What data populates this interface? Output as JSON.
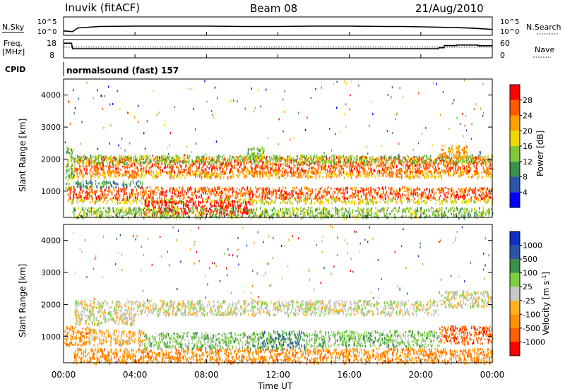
{
  "header": {
    "station": "Inuvik (fitACF)",
    "beam": "Beam 08",
    "date": "21/Aug/2010"
  },
  "left_labels": {
    "nsky": "N.Sky",
    "freq": "Freq.",
    "mhz": "[MHz]",
    "cpid": "CPID"
  },
  "right_labels": {
    "nsearch": "N.Search",
    "nave": "Nave"
  },
  "cpid_text": "normalsound (fast) 157",
  "ticks": {
    "nsky_hi": "10^5",
    "nsky_lo": "10^0",
    "freq_hi": "18",
    "freq_lo": "8",
    "nave_hi": "60",
    "nave_lo": "0",
    "range": [
      "1000",
      "2000",
      "3000",
      "4000"
    ],
    "time": [
      "00:00",
      "04:00",
      "08:00",
      "12:00",
      "16:00",
      "20:00",
      "00:00"
    ]
  },
  "axis": {
    "ylabel": "Slant Range [km]",
    "xlabel": "Time UT",
    "power_label": "Power [dB]",
    "velocity_label_main": "Velocity [m s",
    "velocity_label_sup": "-1",
    "velocity_label_end": "]"
  },
  "colorbars": {
    "power": {
      "colors": [
        "#0000ff",
        "#2e54a8",
        "#3a8f4a",
        "#7ec83a",
        "#f0d800",
        "#ffa000",
        "#ff5a00",
        "#ff0000"
      ],
      "labels": [
        "4",
        "8",
        "12",
        "16",
        "20",
        "24",
        "28"
      ]
    },
    "velocity": {
      "colors": [
        "#ff0000",
        "#ff6000",
        "#ff9000",
        "#ffb020",
        "#c8c8c8",
        "#7ed040",
        "#3a8f4a",
        "#2e54a8",
        "#1030c0"
      ],
      "labels": [
        "-1000",
        "-500",
        "-100",
        "-25",
        "25",
        "100",
        "500",
        "1000"
      ]
    }
  },
  "chart_data": [
    {
      "type": "line",
      "name": "N.Sky",
      "ylim_log10": [
        0,
        5
      ],
      "x_hours": [
        0,
        0.5,
        0.8,
        2,
        4,
        6,
        8,
        10,
        12,
        14,
        16,
        18,
        19,
        20,
        21,
        22,
        23,
        24
      ],
      "values_log10": [
        1.2,
        1.0,
        2.0,
        2.4,
        2.5,
        2.5,
        2.5,
        2.4,
        2.4,
        2.5,
        2.5,
        2.4,
        2.4,
        2.3,
        2.2,
        2.1,
        1.9,
        1.6
      ]
    },
    {
      "type": "line",
      "name": "Freq.",
      "ylim": [
        8,
        18
      ],
      "x_hours": [
        0,
        0.45,
        0.5,
        21,
        21.01,
        21.3,
        21.31,
        22,
        22.01,
        23.2,
        23.21,
        24
      ],
      "values": [
        16,
        16,
        13,
        13,
        13.5,
        13.5,
        14.7,
        14.7,
        15,
        15,
        14.6,
        14.6
      ]
    },
    {
      "type": "line",
      "name": "Nave",
      "ylim": [
        0,
        60
      ],
      "x_hours": [
        0,
        24
      ],
      "values": [
        35,
        35
      ]
    },
    {
      "type": "heatmap",
      "name": "Power",
      "x_range_hours": [
        0,
        24
      ],
      "y_range_km": [
        180,
        4500
      ],
      "colorbar": "power",
      "scatter_bands": [
        {
          "t0": 0.6,
          "t1": 24,
          "r0": 1600,
          "r1": 2100,
          "c": 6
        },
        {
          "t0": 0.6,
          "t1": 24,
          "r0": 1450,
          "r1": 1650,
          "c": 5
        },
        {
          "t0": 0.6,
          "t1": 24,
          "r0": 1900,
          "r1": 2150,
          "c": 3
        },
        {
          "t0": 0.2,
          "t1": 24,
          "r0": 780,
          "r1": 1150,
          "c": 6
        },
        {
          "t0": 0.2,
          "t1": 24,
          "r0": 650,
          "r1": 780,
          "c": 4
        },
        {
          "t0": 0.6,
          "t1": 4.4,
          "r0": 1150,
          "r1": 1350,
          "c": 2
        },
        {
          "t0": 4.4,
          "t1": 10.5,
          "r0": 300,
          "r1": 750,
          "c": 7
        },
        {
          "t0": 0.5,
          "t1": 24,
          "r0": 200,
          "r1": 520,
          "c": 3
        },
        {
          "t0": 21,
          "t1": 22.6,
          "r0": 2050,
          "r1": 2450,
          "c": 5
        },
        {
          "t0": 10.2,
          "t1": 11.2,
          "r0": 2000,
          "r1": 2400,
          "c": 3
        },
        {
          "t0": 0.1,
          "t1": 0.6,
          "r0": 1100,
          "r1": 2400,
          "c": 3
        }
      ]
    },
    {
      "type": "heatmap",
      "name": "Velocity",
      "x_range_hours": [
        0,
        24
      ],
      "y_range_km": [
        180,
        4500
      ],
      "colorbar": "velocity",
      "scatter_bands": [
        {
          "t0": 0.6,
          "t1": 21,
          "r0": 1700,
          "r1": 2150,
          "c": 4
        },
        {
          "t0": 0.6,
          "t1": 4,
          "r0": 1400,
          "r1": 1700,
          "c": 4
        },
        {
          "t0": 21,
          "t1": 24,
          "r0": 1950,
          "r1": 2450,
          "c": 4
        },
        {
          "t0": 0,
          "t1": 1.4,
          "r0": 750,
          "r1": 1350,
          "c": 2
        },
        {
          "t0": 1.4,
          "t1": 4.5,
          "r0": 750,
          "r1": 1250,
          "c": 3
        },
        {
          "t0": 4.5,
          "t1": 11,
          "r0": 650,
          "r1": 1150,
          "c": 5
        },
        {
          "t0": 11,
          "t1": 13.5,
          "r0": 600,
          "r1": 1200,
          "c": 6
        },
        {
          "t0": 13.5,
          "t1": 21,
          "r0": 700,
          "r1": 1200,
          "c": 5
        },
        {
          "t0": 21,
          "t1": 24,
          "r0": 800,
          "r1": 1350,
          "c": 1
        },
        {
          "t0": 0.5,
          "t1": 24,
          "r0": 200,
          "r1": 650,
          "c": 2
        }
      ]
    }
  ]
}
